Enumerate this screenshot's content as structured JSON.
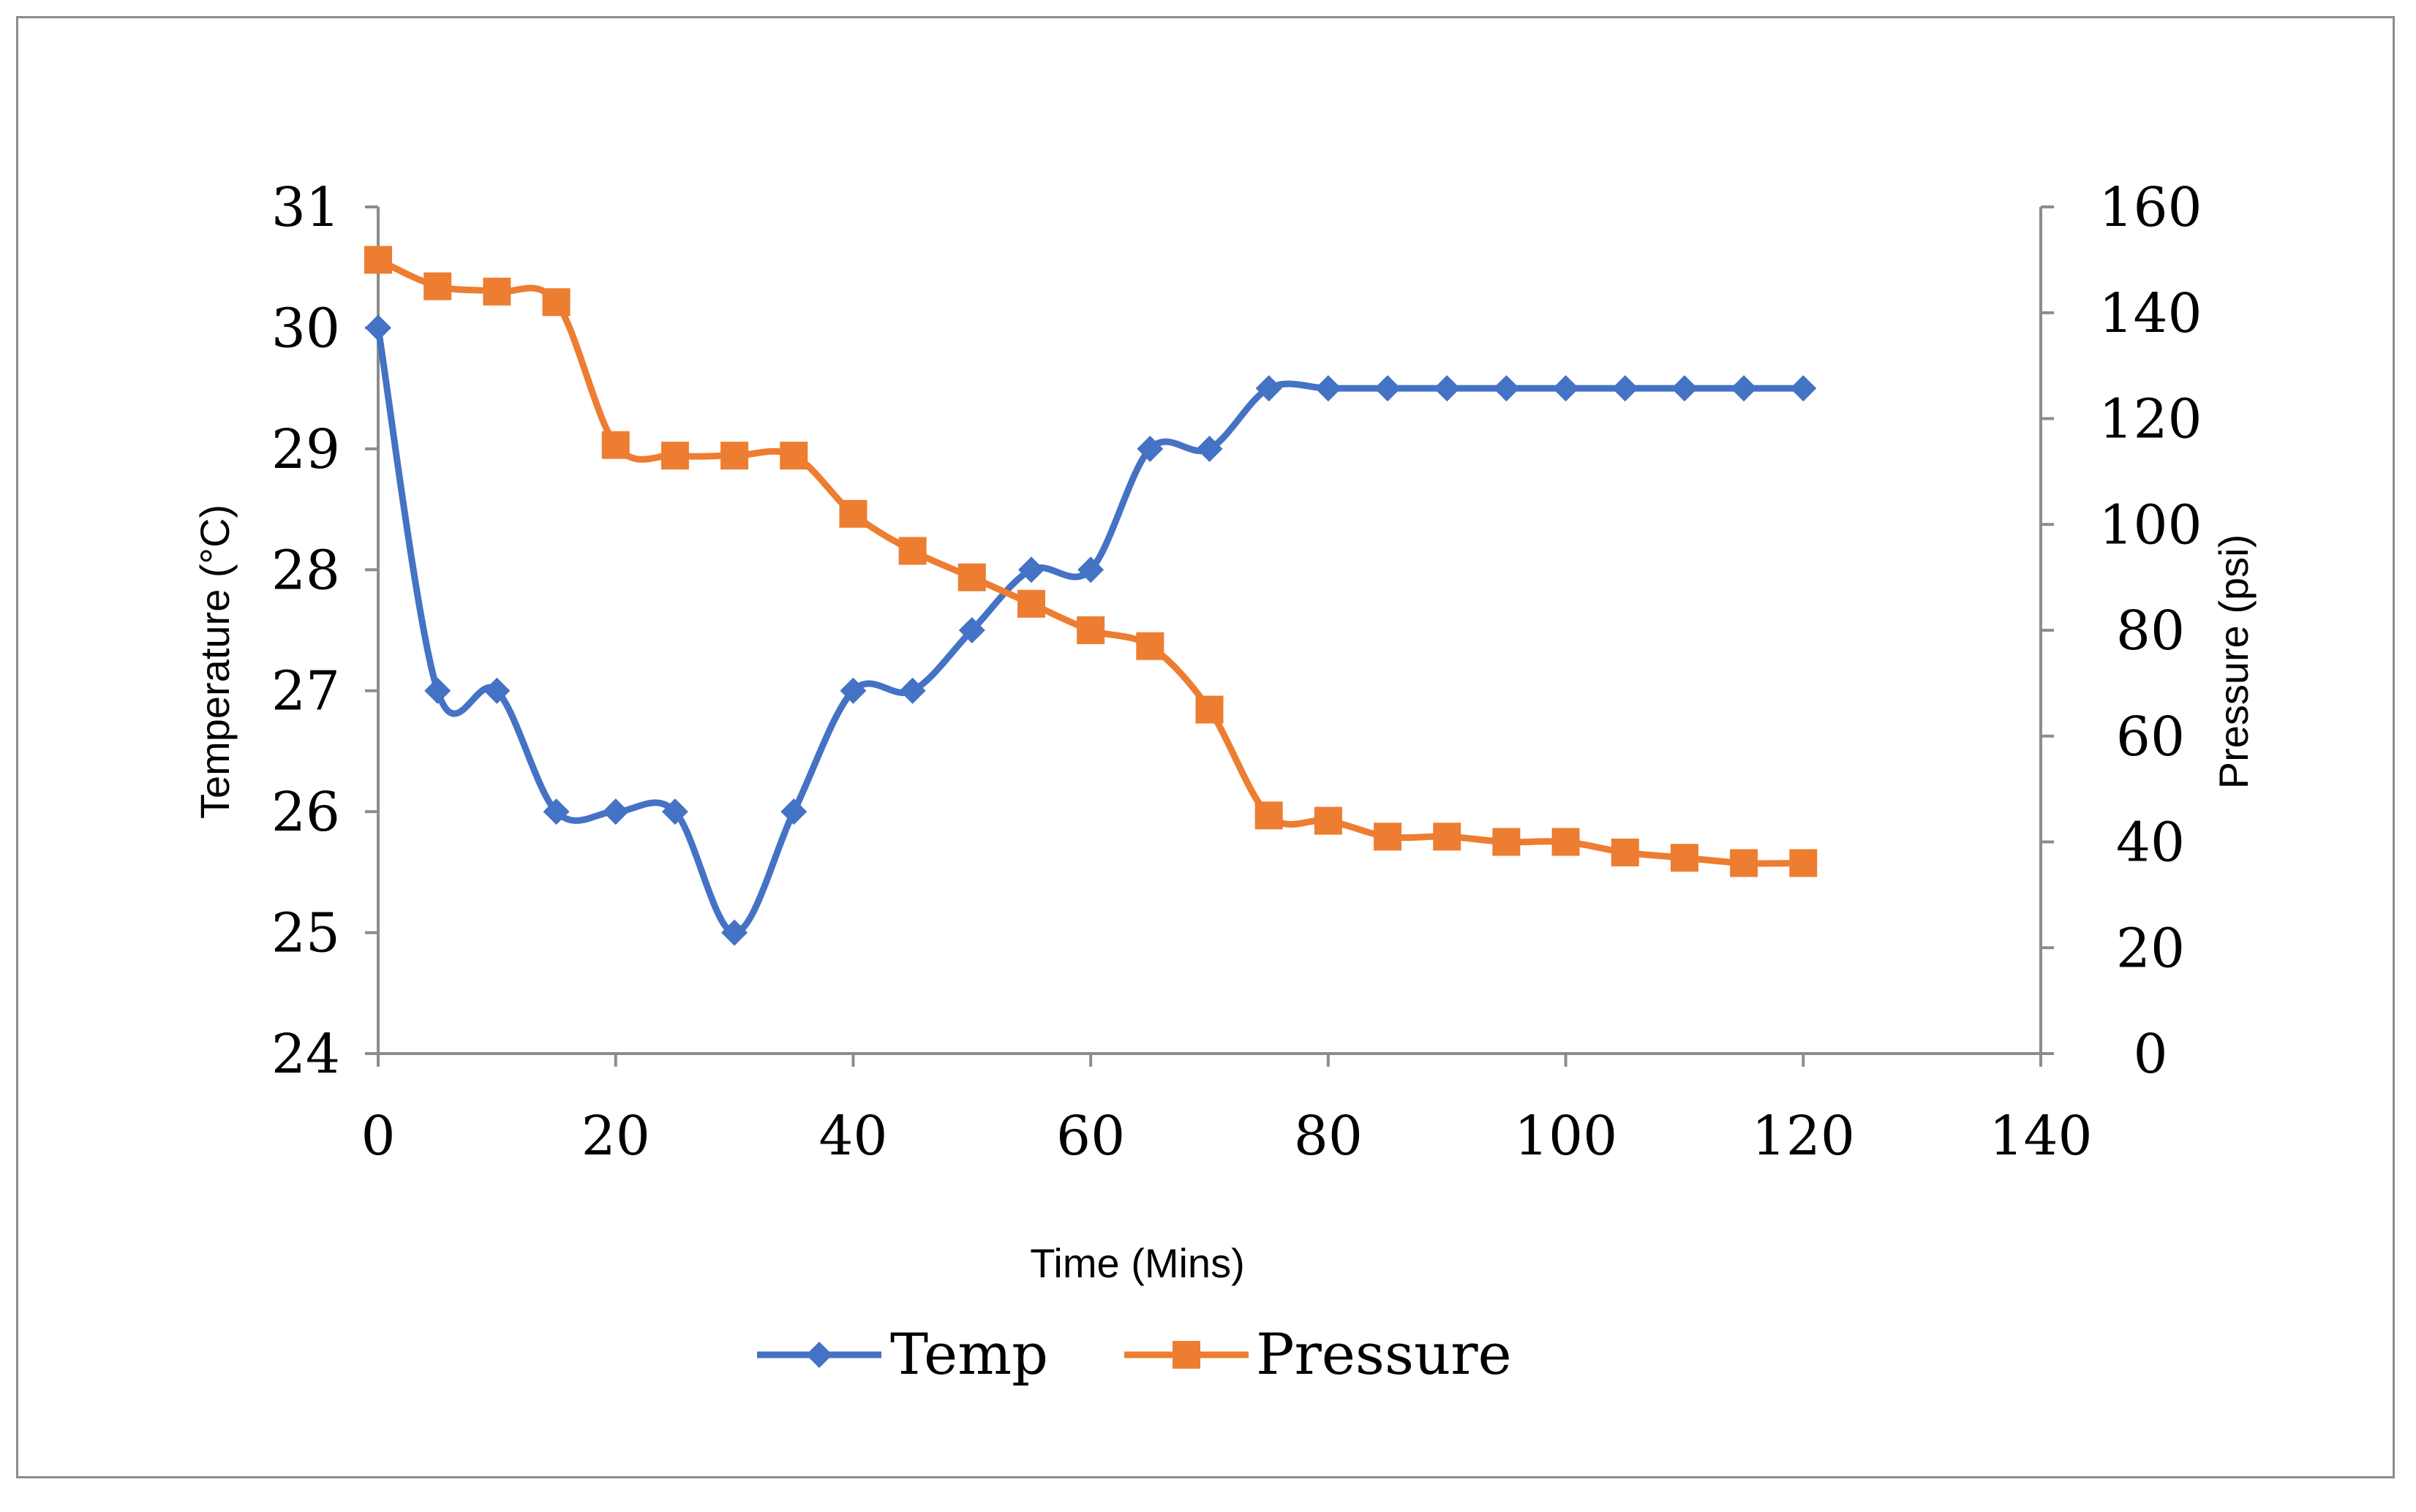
{
  "chart_data": {
    "type": "line",
    "title": "",
    "xlabel": "Time (Mins)",
    "ylabel_left": "Temperature (°C)",
    "ylabel_right": "Pressure (psi)",
    "x_range": [
      0,
      140
    ],
    "x_ticks": [
      0,
      20,
      40,
      60,
      80,
      100,
      120,
      140
    ],
    "y_left_range": [
      24,
      31
    ],
    "y_left_ticks": [
      24,
      25,
      26,
      27,
      28,
      29,
      30,
      31
    ],
    "y_right_range": [
      0,
      160
    ],
    "y_right_ticks": [
      0,
      20,
      40,
      60,
      80,
      100,
      120,
      140,
      160
    ],
    "grid": false,
    "legend_position": "bottom",
    "series": [
      {
        "name": "Temp",
        "axis": "left",
        "marker": "diamond",
        "color": "#4472C4",
        "x": [
          0,
          5,
          10,
          15,
          20,
          25,
          30,
          35,
          40,
          45,
          50,
          55,
          60,
          65,
          70,
          75,
          80,
          85,
          90,
          95,
          100,
          105,
          110,
          115,
          120
        ],
        "values": [
          30,
          27,
          27,
          26,
          26,
          26,
          25,
          26,
          27,
          27,
          27.5,
          28,
          28,
          29,
          29,
          29.5,
          29.5,
          29.5,
          29.5,
          29.5,
          29.5,
          29.5,
          29.5,
          29.5,
          29.5
        ]
      },
      {
        "name": "Pressure",
        "axis": "right",
        "marker": "square",
        "color": "#ED7D31",
        "x": [
          0,
          5,
          10,
          15,
          20,
          25,
          30,
          35,
          40,
          45,
          50,
          55,
          60,
          65,
          70,
          75,
          80,
          85,
          90,
          95,
          100,
          105,
          110,
          115,
          120
        ],
        "values": [
          150,
          145,
          144,
          142,
          115,
          113,
          113,
          113,
          102,
          95,
          90,
          85,
          80,
          77,
          65,
          45,
          44,
          41,
          41,
          40,
          40,
          38,
          37,
          36,
          36
        ]
      }
    ]
  }
}
